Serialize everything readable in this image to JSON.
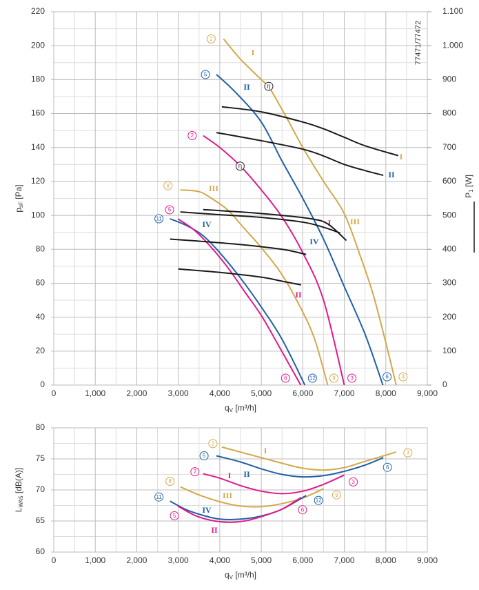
{
  "chart_data": [
    {
      "type": "line",
      "note": "77471/77472",
      "xlabel": {
        "main": "q",
        "sub": "V",
        "unit": " [m³/h]"
      },
      "ylabel": {
        "main": "p",
        "sub": "sF",
        "unit": " [Pa]"
      },
      "y2label": {
        "main": "P",
        "sub": "1",
        "unit": " [W]"
      },
      "xlim": [
        0,
        9000
      ],
      "ylim": [
        0,
        220
      ],
      "y2lim": [
        0,
        1100
      ],
      "grid": true,
      "minor_grid": true,
      "xticks": [
        0,
        {
          "value": 1000,
          "label": "1,000"
        },
        {
          "value": 2000,
          "label": "2,000"
        },
        {
          "value": 3000,
          "label": "3,000"
        },
        {
          "value": 4000,
          "label": "4,000"
        },
        {
          "value": 5000,
          "label": "5,000"
        },
        {
          "value": 6000,
          "label": "6,000"
        },
        {
          "value": 7000,
          "label": "7,000"
        },
        {
          "value": 8000,
          "label": "8,000"
        },
        {
          "value": 9000,
          "label": "9,000"
        }
      ],
      "yticks": [
        0,
        20,
        40,
        60,
        80,
        100,
        120,
        140,
        160,
        180,
        200,
        220
      ],
      "y2ticks": [
        0,
        100,
        200,
        300,
        400,
        500,
        600,
        700,
        800,
        900,
        {
          "value": 1000,
          "label": "1.000"
        },
        {
          "value": 1100,
          "label": "1.100"
        }
      ],
      "annotations": [
        {
          "label": "η",
          "x": 5180,
          "y": 176
        },
        {
          "label": "η",
          "x": 4490,
          "y": 129
        }
      ],
      "series": [
        {
          "name": "I",
          "color": "#d4a84a",
          "start_label": "2",
          "end_label": "3",
          "x": [
            4090,
            4500,
            5000,
            5200,
            5600,
            6000,
            6500,
            7000,
            7400,
            7700,
            8000,
            8250
          ],
          "values": [
            204,
            192,
            180,
            175,
            158,
            140,
            120,
            101,
            75,
            53,
            25,
            0
          ]
        },
        {
          "name": "II",
          "color": "#1f5fa8",
          "start_label": "5",
          "end_label": "6",
          "x": [
            3920,
            4400,
            5000,
            5500,
            6000,
            6500,
            7000,
            7500,
            7930
          ],
          "values": [
            183,
            172,
            155,
            132,
            110,
            86,
            58,
            30,
            0
          ]
        },
        {
          "name": "I",
          "color": "#e0198c",
          "start_label": "2",
          "end_label": "3",
          "x": [
            3600,
            4000,
            4500,
            5000,
            5500,
            6000,
            6500,
            7000
          ],
          "values": [
            147,
            140,
            129,
            115,
            99,
            78,
            50,
            0
          ]
        },
        {
          "name": "III",
          "color": "#d4a84a",
          "start_label": "8",
          "end_label": "9",
          "x": [
            3050,
            3500,
            3800,
            4200,
            4600,
            5000,
            5500,
            6000,
            6300,
            6600
          ],
          "values": [
            115,
            114,
            110,
            103,
            92,
            81,
            65,
            43,
            26,
            0
          ]
        },
        {
          "name": "IV",
          "color": "#1f5fa8",
          "start_label": "11",
          "end_label": "12",
          "x": [
            2800,
            3200,
            3600,
            4000,
            4500,
            5000,
            5500,
            6050
          ],
          "values": [
            98,
            94,
            88,
            78,
            63,
            46,
            27,
            0
          ]
        },
        {
          "name": "II",
          "color": "#e0198c",
          "start_label": "5",
          "end_label": "6",
          "x": [
            2990,
            3400,
            3800,
            4200,
            4600,
            5000,
            5400,
            5950
          ],
          "values": [
            98,
            91,
            81,
            69,
            55,
            41,
            24,
            0
          ]
        },
        {
          "name": "I",
          "color": "#1a1a1a",
          "label_color": "#d4a84a",
          "axis": "y2",
          "x": [
            4050,
            5000,
            6000,
            6500,
            7000,
            7500,
            8300
          ],
          "values": [
            820,
            805,
            775,
            755,
            730,
            705,
            676
          ]
        },
        {
          "name": "II",
          "color": "#1a1a1a",
          "label_color": "#1f5fa8",
          "axis": "y2",
          "x": [
            3920,
            5000,
            6000,
            6500,
            7000,
            7500,
            7940
          ],
          "values": [
            744,
            720,
            695,
            675,
            650,
            632,
            618
          ]
        },
        {
          "name": "III",
          "color": "#1a1a1a",
          "label_color": "#d4a84a",
          "axis": "y2",
          "x": [
            3600,
            4500,
            5500,
            6200,
            6600,
            7050
          ],
          "values": [
            517,
            510,
            500,
            490,
            475,
            426
          ]
        },
        {
          "color": "#1a1a1a",
          "axis": "y2",
          "x": [
            3050,
            4000,
            5000,
            6000,
            6500,
            6900
          ],
          "values": [
            510,
            502,
            494,
            480,
            465,
            448
          ]
        },
        {
          "name": "IV",
          "color": "#1a1a1a",
          "label_color": "#1f5fa8",
          "axis": "y2",
          "x": [
            2800,
            3500,
            4500,
            5500,
            6080
          ],
          "values": [
            430,
            424,
            414,
            400,
            385
          ]
        },
        {
          "color": "#1a1a1a",
          "axis": "y2",
          "x": [
            3000,
            4000,
            5000,
            5500,
            5960
          ],
          "values": [
            342,
            332,
            318,
            306,
            295
          ]
        }
      ]
    },
    {
      "type": "line",
      "xlabel": {
        "main": "q",
        "sub": "V",
        "unit": " [m³/h]"
      },
      "ylabel": {
        "main": "L",
        "sub": "WA5",
        "unit": " [dB(A)]"
      },
      "xlim": [
        0,
        9000
      ],
      "ylim": [
        60,
        80
      ],
      "grid": true,
      "minor_grid": true,
      "xticks": [
        0,
        {
          "value": 1000,
          "label": "1,000"
        },
        {
          "value": 2000,
          "label": "2,000"
        },
        {
          "value": 3000,
          "label": "3,000"
        },
        {
          "value": 4000,
          "label": "4,000"
        },
        {
          "value": 5000,
          "label": "5,000"
        },
        {
          "value": 6000,
          "label": "6,000"
        },
        {
          "value": 7000,
          "label": "7,000"
        },
        {
          "value": 8000,
          "label": "8,000"
        },
        {
          "value": 9000,
          "label": "9,000"
        }
      ],
      "yticks": [
        60,
        65,
        70,
        75,
        80
      ],
      "series": [
        {
          "name": "I",
          "color": "#d4a84a",
          "start_label": "2",
          "end_label": "3",
          "x": [
            4050,
            5000,
            5500,
            6000,
            6500,
            7000,
            7500,
            8250
          ],
          "values": [
            76.9,
            75.2,
            74.3,
            73.5,
            73.2,
            73.6,
            74.6,
            76.1
          ]
        },
        {
          "name": "II",
          "color": "#1f5fa8",
          "start_label": "5",
          "end_label": "6",
          "x": [
            3920,
            4500,
            5000,
            5500,
            6000,
            6500,
            7000,
            7500,
            7940
          ],
          "values": [
            75.5,
            74.5,
            73.4,
            72.5,
            72.1,
            72.3,
            73,
            74,
            75.2
          ]
        },
        {
          "name": "I",
          "color": "#e0198c",
          "start_label": "2",
          "end_label": "3",
          "x": [
            3600,
            4000,
            4500,
            5000,
            5500,
            6000,
            6500,
            7000
          ],
          "values": [
            72.6,
            71.9,
            70.7,
            69.8,
            69.4,
            69.8,
            70.9,
            72.4
          ]
        },
        {
          "name": "III",
          "color": "#d4a84a",
          "start_label": "8",
          "end_label": "9",
          "x": [
            3050,
            3500,
            4000,
            4500,
            5000,
            5500,
            6000,
            6500
          ],
          "values": [
            70.5,
            69.2,
            68.1,
            67.4,
            67.3,
            67.8,
            68.7,
            70.2
          ]
        },
        {
          "name": "IV",
          "color": "#1f5fa8",
          "start_label": "11",
          "end_label": "12",
          "x": [
            2800,
            3200,
            3600,
            4000,
            4500,
            5000,
            5500,
            6080
          ],
          "values": [
            68.2,
            66.8,
            65.9,
            65.3,
            65.3,
            65.8,
            66.9,
            69.1
          ]
        },
        {
          "name": "II",
          "color": "#e0198c",
          "start_label": "5",
          "end_label": "6",
          "x": [
            2990,
            3400,
            3800,
            4200,
            4600,
            5000,
            5500,
            5960
          ],
          "values": [
            67.4,
            65.9,
            65.1,
            64.8,
            65,
            65.7,
            66.9,
            68.8
          ]
        }
      ]
    }
  ]
}
